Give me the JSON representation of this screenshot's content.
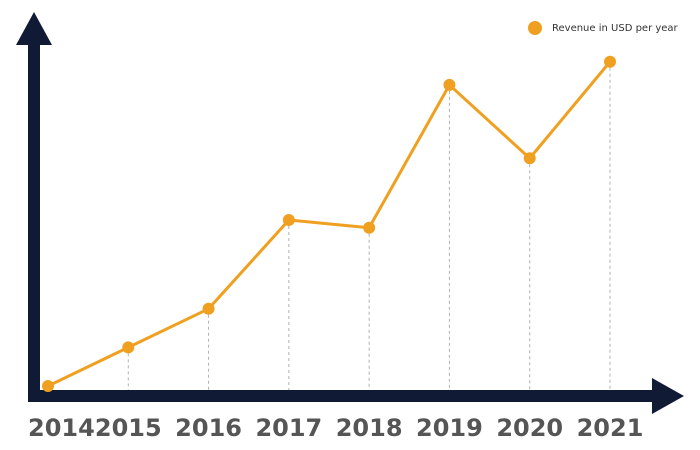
{
  "chart_data": {
    "type": "line",
    "categories": [
      "2014",
      "2015",
      "2016",
      "2017",
      "2018",
      "2019",
      "2020",
      "2021"
    ],
    "series": [
      {
        "name": "Revenue in USD per year",
        "values": [
          0,
          10,
          20,
          43,
          41,
          78,
          59,
          84
        ]
      }
    ],
    "title": "",
    "xlabel": "",
    "ylabel": "",
    "ylim": [
      0,
      100
    ],
    "grid": false,
    "drop_lines": true,
    "legend_position": "top-right",
    "colors": {
      "series": "#F0A020",
      "axis": "#101A35",
      "tick_label": "#555555",
      "drop_line": "#B0B0B0"
    }
  }
}
